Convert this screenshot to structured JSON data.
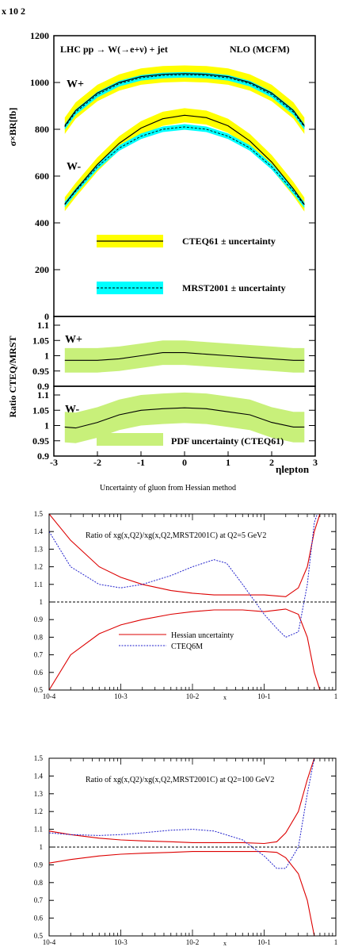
{
  "top": {
    "exponent_label": "x 10 2",
    "ylabel_main": "σ×BR[fb]",
    "ylabel_ratio": "Ratio CTEQ/MRST",
    "header_left": "LHC   pp → W(→e+ν) + jet",
    "header_right": "NLO (MCFM)",
    "wplus": "W+",
    "wminus": "W-",
    "legend_cteq": "CTEQ61 ± uncertainty",
    "legend_mrst": "MRST2001 ± uncertainty",
    "legend_pdf": "PDF uncertainty (CTEQ61)",
    "xlabel": "ηlepton",
    "xticks": [
      "-3",
      "-2",
      "-1",
      "0",
      "1",
      "2",
      "3"
    ],
    "yticks_main": [
      "0",
      "200",
      "400",
      "600",
      "800",
      "1000",
      "1200"
    ],
    "yticks_r1": [
      "0.9",
      "0.95",
      "1",
      "1.05",
      "1.1"
    ],
    "yticks_r2": [
      "0.9",
      "0.95",
      "1",
      "1.05",
      "1.1"
    ],
    "colors": {
      "yellow": "#ffff00",
      "cyan": "#00ffff",
      "green": "#c8f07a"
    }
  },
  "caption": "Uncertainty of gluon from Hessian method",
  "gluon": {
    "panel1_title": "Ratio of xg(x,Q2)/xg(x,Q2,MRST2001C) at Q2=5 GeV2",
    "panel2_title": "Ratio of xg(x,Q2)/xg(x,Q2,MRST2001C) at Q2=100 GeV2",
    "legend_hessian": "Hessian uncertainty",
    "legend_cteq6m": "CTEQ6M",
    "xlabel": "x",
    "xticks": [
      "10-4",
      "10-3",
      "10-2",
      "10-1",
      "1"
    ],
    "yticks": [
      "0.5",
      "0.6",
      "0.7",
      "0.8",
      "0.9",
      "1",
      "1.1",
      "1.2",
      "1.3",
      "1.4",
      "1.5"
    ],
    "colors": {
      "hessian": "#dd0000",
      "cteq6m": "#2222cc"
    }
  },
  "chart_data": [
    {
      "type": "line",
      "title": "LHC pp → W(→e+ν) + jet  NLO (MCFM)",
      "xlabel": "ηlepton",
      "ylabel": "σ×BR[fb] x 10 2",
      "xlim": [
        -3,
        3
      ],
      "ylim": [
        0,
        1200
      ],
      "x": [
        -2.75,
        -2.5,
        -2,
        -1.5,
        -1,
        -0.5,
        0,
        0.5,
        1,
        1.5,
        2,
        2.5,
        2.75
      ],
      "series": [
        {
          "name": "W+ CTEQ61",
          "values": [
            815,
            880,
            955,
            1000,
            1025,
            1035,
            1038,
            1035,
            1025,
            1000,
            955,
            880,
            815
          ],
          "band": 35
        },
        {
          "name": "W+ MRST2001",
          "values": [
            810,
            873,
            948,
            995,
            1020,
            1030,
            1033,
            1030,
            1020,
            995,
            948,
            873,
            810
          ],
          "band": 12
        },
        {
          "name": "W- CTEQ61",
          "values": [
            480,
            540,
            650,
            740,
            805,
            845,
            860,
            850,
            815,
            750,
            660,
            545,
            478
          ],
          "band": 30
        },
        {
          "name": "W- MRST2001",
          "values": [
            478,
            535,
            640,
            720,
            770,
            800,
            810,
            800,
            770,
            720,
            640,
            535,
            476
          ],
          "band": 12
        }
      ],
      "legend": [
        "CTEQ61 ± uncertainty",
        "MRST2001 ± uncertainty"
      ]
    },
    {
      "type": "line",
      "ylabel": "Ratio CTEQ/MRST",
      "xlim": [
        -3,
        3
      ],
      "ylim": [
        0.9,
        1.1
      ],
      "x": [
        -2.75,
        -2.5,
        -2,
        -1.5,
        -1,
        -0.5,
        0,
        0.5,
        1,
        1.5,
        2,
        2.5,
        2.75
      ],
      "series": [
        {
          "name": "W+",
          "values": [
            0.985,
            0.985,
            0.985,
            0.99,
            1.0,
            1.01,
            1.01,
            1.005,
            1.0,
            0.995,
            0.99,
            0.985,
            0.985
          ],
          "band": 0.04
        },
        {
          "name": "W-",
          "values": [
            0.995,
            0.992,
            1.01,
            1.035,
            1.05,
            1.055,
            1.058,
            1.055,
            1.045,
            1.035,
            1.01,
            0.995,
            0.995
          ],
          "band": 0.05
        }
      ],
      "legend": [
        "PDF uncertainty (CTEQ61)"
      ]
    },
    {
      "type": "line",
      "title": "Ratio of xg(x,Q2)/xg(x,Q2,MRST2001C) at Q2=5 GeV2",
      "xlabel": "x",
      "xscale": "log",
      "xlim": [
        0.0001,
        1
      ],
      "ylim": [
        0.5,
        1.5
      ],
      "series": [
        {
          "name": "Hessian uncertainty upper",
          "x": [
            0.0001,
            0.0002,
            0.0005,
            0.001,
            0.002,
            0.005,
            0.01,
            0.02,
            0.05,
            0.1,
            0.2,
            0.3,
            0.4,
            0.5,
            0.6
          ],
          "values": [
            1.5,
            1.35,
            1.2,
            1.14,
            1.1,
            1.065,
            1.05,
            1.04,
            1.04,
            1.04,
            1.03,
            1.08,
            1.2,
            1.4,
            1.5
          ]
        },
        {
          "name": "Hessian uncertainty lower",
          "x": [
            0.0001,
            0.0002,
            0.0005,
            0.001,
            0.002,
            0.005,
            0.01,
            0.02,
            0.05,
            0.1,
            0.2,
            0.3,
            0.4,
            0.5,
            0.6
          ],
          "values": [
            0.5,
            0.7,
            0.82,
            0.87,
            0.9,
            0.93,
            0.945,
            0.955,
            0.955,
            0.945,
            0.96,
            0.93,
            0.8,
            0.6,
            0.5
          ]
        },
        {
          "name": "CTEQ6M",
          "x": [
            0.0001,
            0.0002,
            0.0005,
            0.001,
            0.002,
            0.005,
            0.01,
            0.02,
            0.03,
            0.05,
            0.1,
            0.15,
            0.2,
            0.3,
            0.4,
            0.5,
            0.55
          ],
          "values": [
            1.4,
            1.2,
            1.1,
            1.08,
            1.1,
            1.15,
            1.2,
            1.24,
            1.22,
            1.1,
            0.93,
            0.85,
            0.8,
            0.83,
            1.1,
            1.45,
            1.5
          ]
        },
        {
          "name": "reference",
          "x": [
            0.0001,
            1
          ],
          "values": [
            1,
            1
          ]
        }
      ],
      "legend": [
        "Hessian uncertainty",
        "CTEQ6M"
      ]
    },
    {
      "type": "line",
      "title": "Ratio of xg(x,Q2)/xg(x,Q2,MRST2001C) at Q2=100 GeV2",
      "xlabel": "x",
      "xscale": "log",
      "xlim": [
        0.0001,
        1
      ],
      "ylim": [
        0.5,
        1.5
      ],
      "series": [
        {
          "name": "Hessian uncertainty upper",
          "x": [
            0.0001,
            0.0002,
            0.0005,
            0.001,
            0.002,
            0.005,
            0.01,
            0.02,
            0.05,
            0.1,
            0.15,
            0.2,
            0.3,
            0.4,
            0.5
          ],
          "values": [
            1.09,
            1.07,
            1.05,
            1.04,
            1.035,
            1.03,
            1.025,
            1.025,
            1.025,
            1.02,
            1.03,
            1.08,
            1.2,
            1.38,
            1.5
          ]
        },
        {
          "name": "Hessian uncertainty lower",
          "x": [
            0.0001,
            0.0002,
            0.0005,
            0.001,
            0.002,
            0.005,
            0.01,
            0.02,
            0.05,
            0.1,
            0.15,
            0.2,
            0.3,
            0.4,
            0.5
          ],
          "values": [
            0.91,
            0.93,
            0.95,
            0.96,
            0.965,
            0.97,
            0.975,
            0.975,
            0.975,
            0.975,
            0.97,
            0.94,
            0.85,
            0.7,
            0.5
          ]
        },
        {
          "name": "CTEQ6M",
          "x": [
            0.0001,
            0.0002,
            0.0005,
            0.001,
            0.002,
            0.005,
            0.01,
            0.02,
            0.05,
            0.1,
            0.15,
            0.2,
            0.3,
            0.4,
            0.5
          ],
          "values": [
            1.08,
            1.07,
            1.065,
            1.07,
            1.08,
            1.095,
            1.1,
            1.09,
            1.04,
            0.95,
            0.88,
            0.88,
            1.0,
            1.3,
            1.5
          ]
        },
        {
          "name": "reference",
          "x": [
            0.0001,
            1
          ],
          "values": [
            1,
            1
          ]
        }
      ],
      "legend": [
        "Hessian uncertainty",
        "CTEQ6M"
      ]
    }
  ]
}
